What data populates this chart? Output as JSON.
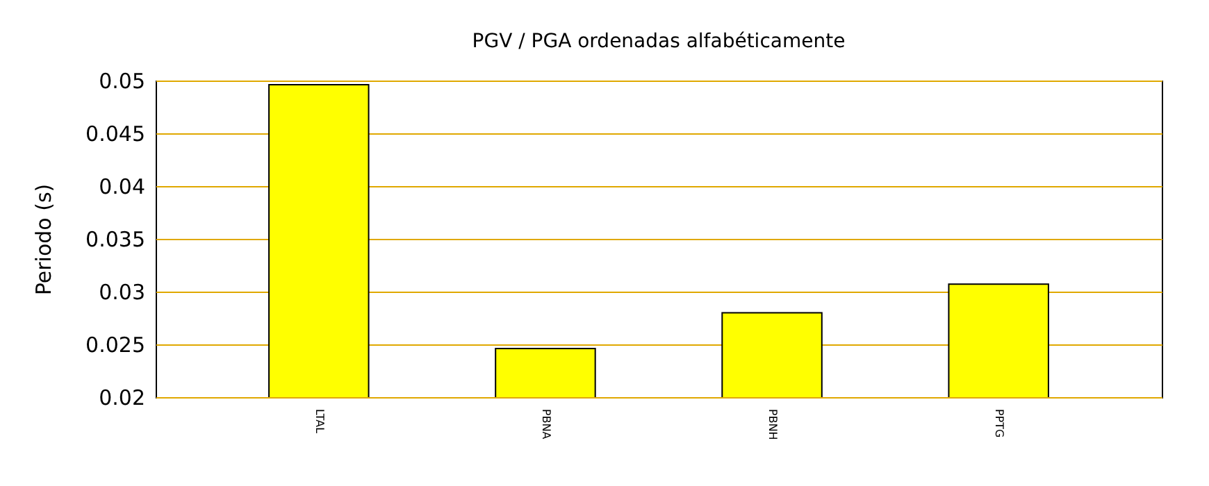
{
  "chart_data": {
    "type": "bar",
    "title": "PGV / PGA ordenadas alfabéticamente",
    "ylabel": "Periodo (s)",
    "categories": [
      "LTAL",
      "PBNA",
      "PBNH",
      "PPTG"
    ],
    "series": [
      {
        "color": "#ffff00",
        "values": [
          0.0496,
          0.0246,
          0.028,
          0.0307
        ]
      }
    ],
    "ylim": [
      0.02,
      0.05
    ],
    "yticks": [
      0.02,
      0.025,
      0.03,
      0.035,
      0.04,
      0.045,
      0.05
    ],
    "grid": "y"
  }
}
